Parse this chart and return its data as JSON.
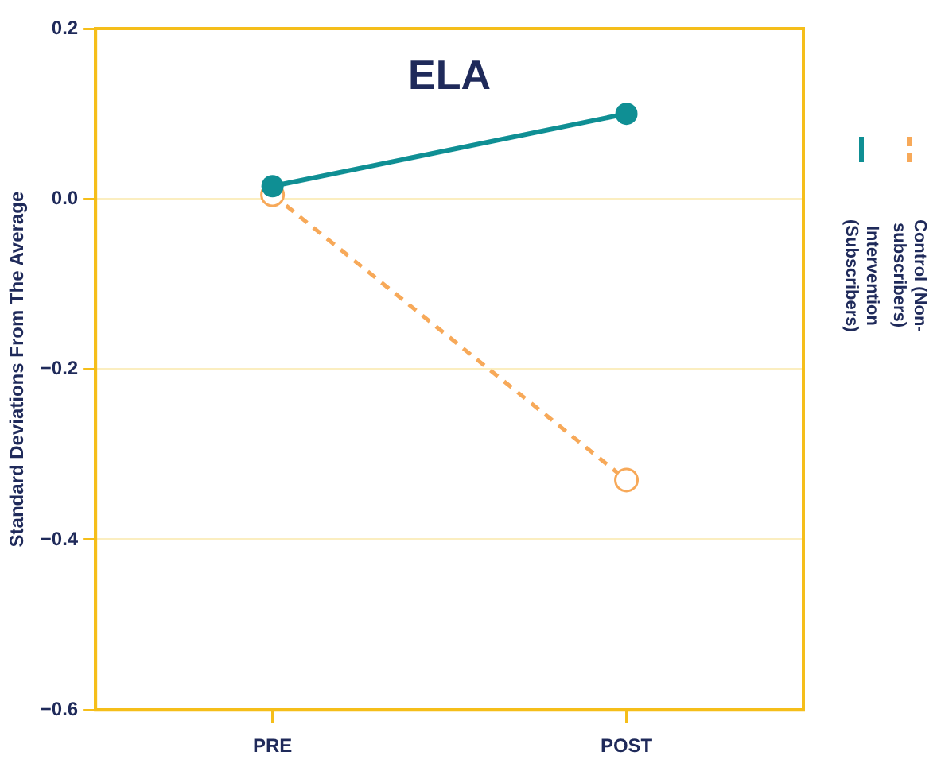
{
  "chart_data": {
    "type": "line",
    "title": "ELA",
    "ylabel": "Standard Deviations From The Average",
    "categories": [
      "PRE",
      "POST"
    ],
    "series": [
      {
        "name": "Intervention (Subscribers)",
        "color": "#0f8f94",
        "values": [
          0.015,
          0.1
        ],
        "marker": "circle",
        "line_style": "solid"
      },
      {
        "name": "Control (Non-subscribers)",
        "color": "#f7a959",
        "values": [
          0.005,
          -0.33
        ],
        "marker": "circle",
        "line_style": "dashed"
      }
    ],
    "ylim": [
      -0.6,
      0.2
    ],
    "yticks": [
      {
        "value": -0.6,
        "label": "−0.6"
      },
      {
        "value": -0.4,
        "label": "−0.4"
      },
      {
        "value": -0.2,
        "label": "−0.2"
      },
      {
        "value": 0,
        "label": "0.0"
      },
      {
        "value": 0.2,
        "label": "0.2"
      }
    ],
    "grid": "y",
    "legend": "right"
  }
}
